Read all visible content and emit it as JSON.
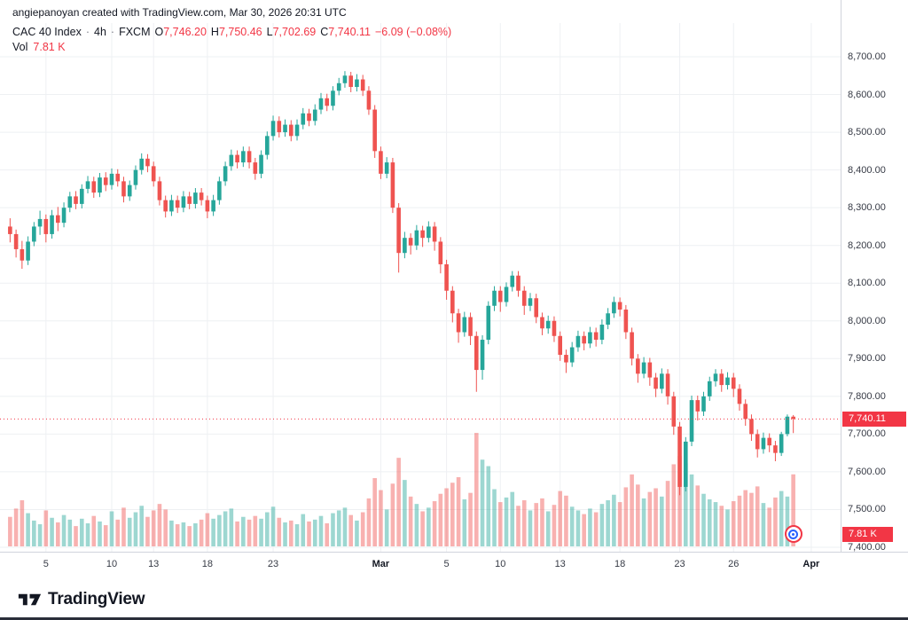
{
  "attribution": "angiepanoyan created with TradingView.com, Mar 30, 2026 20:31 UTC",
  "legend": {
    "symbol": "CAC 40 Index",
    "separator": "·",
    "interval": "4h",
    "exchange": "FXCM",
    "ohlc": [
      {
        "label": "O",
        "value": "7,746.20"
      },
      {
        "label": "H",
        "value": "7,750.46"
      },
      {
        "label": "L",
        "value": "7,702.69"
      },
      {
        "label": "C",
        "value": "7,740.11"
      }
    ],
    "change": "−6.09 (−0.08%)",
    "volume_label": "Vol",
    "volume_value": "7.81 K"
  },
  "axis": {
    "price_labels": [
      "8,700.00",
      "8,600.00",
      "8,500.00",
      "8,400.00",
      "8,300.00",
      "8,200.00",
      "8,100.00",
      "8,000.00",
      "7,900.00",
      "7,800.00",
      "7,700.00",
      "7,600.00",
      "7,500.00",
      "7,400.00"
    ],
    "price_badge": "7,740.11",
    "volume_badge": "7.81 K"
  },
  "footer": {
    "brand": "TradingView"
  },
  "colors": {
    "up": "#26a69a",
    "down": "#ef5350",
    "volume_up": "rgba(38,166,154,0.45)",
    "volume_down": "rgba(239,83,80,0.45)",
    "badge": "#f23645",
    "grid": "#eef0f3",
    "axis_line": "#d1d4dc",
    "accent_blue": "#2962ff"
  },
  "chart_data": {
    "type": "candlestick",
    "title": "CAC 40 Index · 4h · FXCM",
    "ylabel": "Price",
    "y_axis_range": [
      7400,
      8700
    ],
    "y_axis_step": 100,
    "price_ticks": [
      8700,
      8600,
      8500,
      8400,
      8300,
      8200,
      8100,
      8000,
      7900,
      7800,
      7700,
      7600,
      7500,
      7400
    ],
    "volume_max": 12.5,
    "last_close": 7740.11,
    "x_ticks": [
      {
        "label": "5",
        "index": 6,
        "month": false
      },
      {
        "label": "10",
        "index": 17,
        "month": false
      },
      {
        "label": "13",
        "index": 24,
        "month": false
      },
      {
        "label": "18",
        "index": 33,
        "month": false
      },
      {
        "label": "23",
        "index": 44,
        "month": false
      },
      {
        "label": "Mar",
        "index": 62,
        "month": true
      },
      {
        "label": "5",
        "index": 73,
        "month": false
      },
      {
        "label": "10",
        "index": 82,
        "month": false
      },
      {
        "label": "13",
        "index": 92,
        "month": false
      },
      {
        "label": "18",
        "index": 102,
        "month": false
      },
      {
        "label": "23",
        "index": 112,
        "month": false
      },
      {
        "label": "26",
        "index": 121,
        "month": false
      },
      {
        "label": "Apr",
        "index": 134,
        "month": true
      }
    ],
    "candles_format": [
      "open",
      "high",
      "low",
      "close",
      "volume_k"
    ],
    "candles": [
      [
        8250,
        8272,
        8208,
        8230,
        3.2
      ],
      [
        8230,
        8242,
        8168,
        8190,
        4.1
      ],
      [
        8190,
        8212,
        8138,
        8160,
        5.0
      ],
      [
        8160,
        8224,
        8148,
        8210,
        3.6
      ],
      [
        8210,
        8262,
        8198,
        8250,
        2.8
      ],
      [
        8250,
        8292,
        8228,
        8270,
        2.4
      ],
      [
        8270,
        8282,
        8208,
        8230,
        3.9
      ],
      [
        8230,
        8294,
        8218,
        8280,
        3.1
      ],
      [
        8280,
        8302,
        8238,
        8260,
        2.6
      ],
      [
        8260,
        8314,
        8248,
        8300,
        3.4
      ],
      [
        8300,
        8342,
        8288,
        8330,
        2.9
      ],
      [
        8330,
        8344,
        8296,
        8310,
        2.2
      ],
      [
        8310,
        8362,
        8298,
        8350,
        3.0
      ],
      [
        8350,
        8384,
        8338,
        8370,
        2.5
      ],
      [
        8370,
        8382,
        8326,
        8340,
        3.3
      ],
      [
        8340,
        8392,
        8328,
        8380,
        2.7
      ],
      [
        8380,
        8394,
        8344,
        8360,
        2.3
      ],
      [
        8360,
        8404,
        8348,
        8390,
        3.8
      ],
      [
        8390,
        8402,
        8356,
        8370,
        2.9
      ],
      [
        8370,
        8382,
        8314,
        8330,
        4.2
      ],
      [
        8330,
        8372,
        8318,
        8360,
        3.1
      ],
      [
        8360,
        8412,
        8348,
        8400,
        3.7
      ],
      [
        8400,
        8444,
        8388,
        8430,
        4.4
      ],
      [
        8430,
        8442,
        8394,
        8410,
        3.2
      ],
      [
        8410,
        8422,
        8356,
        8370,
        3.9
      ],
      [
        8370,
        8382,
        8306,
        8320,
        4.6
      ],
      [
        8320,
        8332,
        8274,
        8290,
        4.0
      ],
      [
        8290,
        8334,
        8278,
        8320,
        2.8
      ],
      [
        8320,
        8332,
        8286,
        8300,
        2.4
      ],
      [
        8300,
        8344,
        8288,
        8330,
        2.6
      ],
      [
        8330,
        8342,
        8296,
        8310,
        2.2
      ],
      [
        8310,
        8352,
        8298,
        8340,
        2.5
      ],
      [
        8340,
        8352,
        8306,
        8320,
        2.9
      ],
      [
        8320,
        8332,
        8272,
        8290,
        3.6
      ],
      [
        8290,
        8334,
        8278,
        8320,
        3.0
      ],
      [
        8320,
        8382,
        8308,
        8370,
        3.4
      ],
      [
        8370,
        8422,
        8358,
        8410,
        3.8
      ],
      [
        8410,
        8454,
        8398,
        8440,
        4.1
      ],
      [
        8440,
        8452,
        8404,
        8420,
        2.7
      ],
      [
        8420,
        8462,
        8408,
        8450,
        3.2
      ],
      [
        8450,
        8462,
        8404,
        8420,
        2.9
      ],
      [
        8420,
        8432,
        8374,
        8390,
        3.3
      ],
      [
        8390,
        8452,
        8378,
        8440,
        3.0
      ],
      [
        8440,
        8502,
        8428,
        8490,
        3.7
      ],
      [
        8490,
        8544,
        8478,
        8530,
        4.3
      ],
      [
        8530,
        8542,
        8486,
        8500,
        3.1
      ],
      [
        8500,
        8534,
        8488,
        8520,
        2.6
      ],
      [
        8520,
        8532,
        8476,
        8490,
        2.8
      ],
      [
        8490,
        8534,
        8478,
        8520,
        2.4
      ],
      [
        8520,
        8564,
        8508,
        8550,
        3.5
      ],
      [
        8550,
        8562,
        8516,
        8530,
        2.7
      ],
      [
        8530,
        8574,
        8518,
        8560,
        2.9
      ],
      [
        8560,
        8604,
        8548,
        8590,
        3.3
      ],
      [
        8590,
        8602,
        8556,
        8570,
        2.5
      ],
      [
        8570,
        8622,
        8558,
        8610,
        3.6
      ],
      [
        8610,
        8644,
        8598,
        8630,
        3.9
      ],
      [
        8630,
        8662,
        8618,
        8650,
        4.2
      ],
      [
        8650,
        8660,
        8606,
        8620,
        3.4
      ],
      [
        8620,
        8654,
        8608,
        8640,
        2.8
      ],
      [
        8640,
        8652,
        8596,
        8610,
        3.7
      ],
      [
        8610,
        8622,
        8546,
        8560,
        5.2
      ],
      [
        8560,
        8572,
        8432,
        8450,
        7.4
      ],
      [
        8450,
        8462,
        8376,
        8390,
        6.1
      ],
      [
        8390,
        8434,
        8378,
        8420,
        4.0
      ],
      [
        8420,
        8432,
        8286,
        8300,
        6.8
      ],
      [
        8300,
        8312,
        8128,
        8180,
        9.6
      ],
      [
        8180,
        8236,
        8166,
        8220,
        7.2
      ],
      [
        8220,
        8232,
        8176,
        8200,
        5.4
      ],
      [
        8200,
        8254,
        8188,
        8240,
        4.6
      ],
      [
        8240,
        8252,
        8196,
        8220,
        3.8
      ],
      [
        8220,
        8264,
        8208,
        8250,
        4.2
      ],
      [
        8250,
        8262,
        8186,
        8210,
        4.9
      ],
      [
        8210,
        8222,
        8126,
        8150,
        5.7
      ],
      [
        8150,
        8162,
        8056,
        8080,
        6.3
      ],
      [
        8080,
        8092,
        7996,
        8020,
        6.9
      ],
      [
        8020,
        8032,
        7942,
        7970,
        7.5
      ],
      [
        7970,
        8024,
        7958,
        8010,
        5.1
      ],
      [
        8010,
        8022,
        7936,
        7960,
        5.8
      ],
      [
        7960,
        7972,
        7812,
        7870,
        12.3
      ],
      [
        7870,
        7962,
        7844,
        7950,
        9.4
      ],
      [
        7950,
        8052,
        7938,
        8040,
        8.7
      ],
      [
        8040,
        8092,
        8026,
        8080,
        6.2
      ],
      [
        8080,
        8092,
        8024,
        8050,
        4.8
      ],
      [
        8050,
        8102,
        8038,
        8090,
        5.3
      ],
      [
        8090,
        8132,
        8078,
        8120,
        5.9
      ],
      [
        8120,
        8132,
        8064,
        8080,
        4.4
      ],
      [
        8080,
        8092,
        8016,
        8040,
        5.0
      ],
      [
        8040,
        8074,
        8026,
        8060,
        3.9
      ],
      [
        8060,
        8072,
        7994,
        8010,
        4.7
      ],
      [
        8010,
        8022,
        7962,
        7980,
        5.2
      ],
      [
        7980,
        8014,
        7966,
        8000,
        3.8
      ],
      [
        8000,
        8012,
        7944,
        7960,
        4.5
      ],
      [
        7960,
        7972,
        7894,
        7910,
        6.0
      ],
      [
        7910,
        7924,
        7862,
        7890,
        5.5
      ],
      [
        7890,
        7944,
        7878,
        7930,
        4.3
      ],
      [
        7930,
        7974,
        7918,
        7960,
        3.9
      ],
      [
        7960,
        7972,
        7922,
        7940,
        3.5
      ],
      [
        7940,
        7984,
        7928,
        7970,
        4.1
      ],
      [
        7970,
        7982,
        7932,
        7950,
        3.7
      ],
      [
        7950,
        8004,
        7938,
        7990,
        4.6
      ],
      [
        7990,
        8034,
        7978,
        8020,
        5.0
      ],
      [
        8020,
        8064,
        8008,
        8050,
        5.6
      ],
      [
        8050,
        8062,
        8012,
        8030,
        4.8
      ],
      [
        8030,
        8042,
        7952,
        7970,
        6.4
      ],
      [
        7970,
        7982,
        7882,
        7900,
        7.8
      ],
      [
        7900,
        7912,
        7836,
        7860,
        6.7
      ],
      [
        7860,
        7904,
        7848,
        7890,
        5.2
      ],
      [
        7890,
        7902,
        7828,
        7850,
        5.9
      ],
      [
        7850,
        7862,
        7798,
        7820,
        6.3
      ],
      [
        7820,
        7874,
        7808,
        7860,
        5.4
      ],
      [
        7860,
        7872,
        7778,
        7800,
        7.1
      ],
      [
        7800,
        7812,
        7698,
        7720,
        8.9
      ],
      [
        7720,
        7732,
        7538,
        7560,
        9.8
      ],
      [
        7560,
        7692,
        7548,
        7680,
        9.0
      ],
      [
        7680,
        7802,
        7668,
        7790,
        7.8
      ],
      [
        7790,
        7802,
        7736,
        7760,
        6.6
      ],
      [
        7760,
        7812,
        7748,
        7800,
        5.7
      ],
      [
        7800,
        7852,
        7788,
        7840,
        5.1
      ],
      [
        7840,
        7872,
        7826,
        7860,
        4.8
      ],
      [
        7860,
        7872,
        7812,
        7830,
        4.4
      ],
      [
        7830,
        7864,
        7818,
        7850,
        4.0
      ],
      [
        7850,
        7862,
        7798,
        7820,
        4.9
      ],
      [
        7820,
        7832,
        7762,
        7780,
        5.5
      ],
      [
        7780,
        7792,
        7722,
        7740,
        6.1
      ],
      [
        7740,
        7752,
        7682,
        7700,
        5.8
      ],
      [
        7700,
        7712,
        7638,
        7660,
        6.5
      ],
      [
        7660,
        7704,
        7648,
        7690,
        4.7
      ],
      [
        7690,
        7702,
        7652,
        7670,
        4.2
      ],
      [
        7670,
        7682,
        7628,
        7650,
        5.3
      ],
      [
        7650,
        7706,
        7642,
        7700,
        6.0
      ],
      [
        7700,
        7752,
        7694,
        7746.2,
        5.4
      ],
      [
        7746.2,
        7750.46,
        7702.69,
        7740.11,
        7.81
      ]
    ]
  }
}
